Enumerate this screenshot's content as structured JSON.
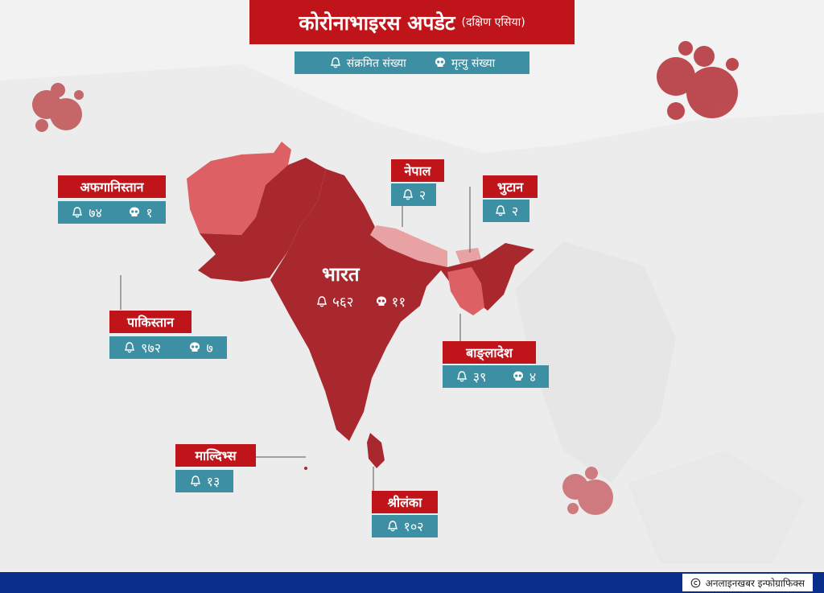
{
  "header": {
    "title": "कोरोनाभाइरस अपडेट",
    "subtitle": "(दक्षिण एसिया)"
  },
  "legend": {
    "infected_label": "संक्रमित संख्या",
    "death_label": "मृत्यु संख्या",
    "infected_icon": "bell-icon",
    "death_icon": "skull-icon"
  },
  "countries": {
    "afghanistan": {
      "name": "अफगानिस्तान",
      "infected": "७४",
      "deaths": "१"
    },
    "nepal": {
      "name": "नेपाल",
      "infected": "२"
    },
    "bhutan": {
      "name": "भुटान",
      "infected": "२"
    },
    "india": {
      "name": "भारत",
      "infected": "५६२",
      "deaths": "११"
    },
    "pakistan": {
      "name": "पाकिस्तान",
      "infected": "९७२",
      "deaths": "७"
    },
    "bangladesh": {
      "name": "बाङ्लादेश",
      "infected": "३९",
      "deaths": "४"
    },
    "maldives": {
      "name": "माल्दिभ्स",
      "infected": "१३"
    },
    "srilanka": {
      "name": "श्रीलंका",
      "infected": "१०२"
    }
  },
  "footer": {
    "credit": "अनलाइनखबर इन्फोग्राफिक्स",
    "credit_icon": "copyright-icon"
  },
  "colors": {
    "title_red": "#c0141b",
    "stat_teal": "#3d8fa3",
    "india_fill": "#a8282e",
    "footer_blue": "#0b2d8c"
  }
}
